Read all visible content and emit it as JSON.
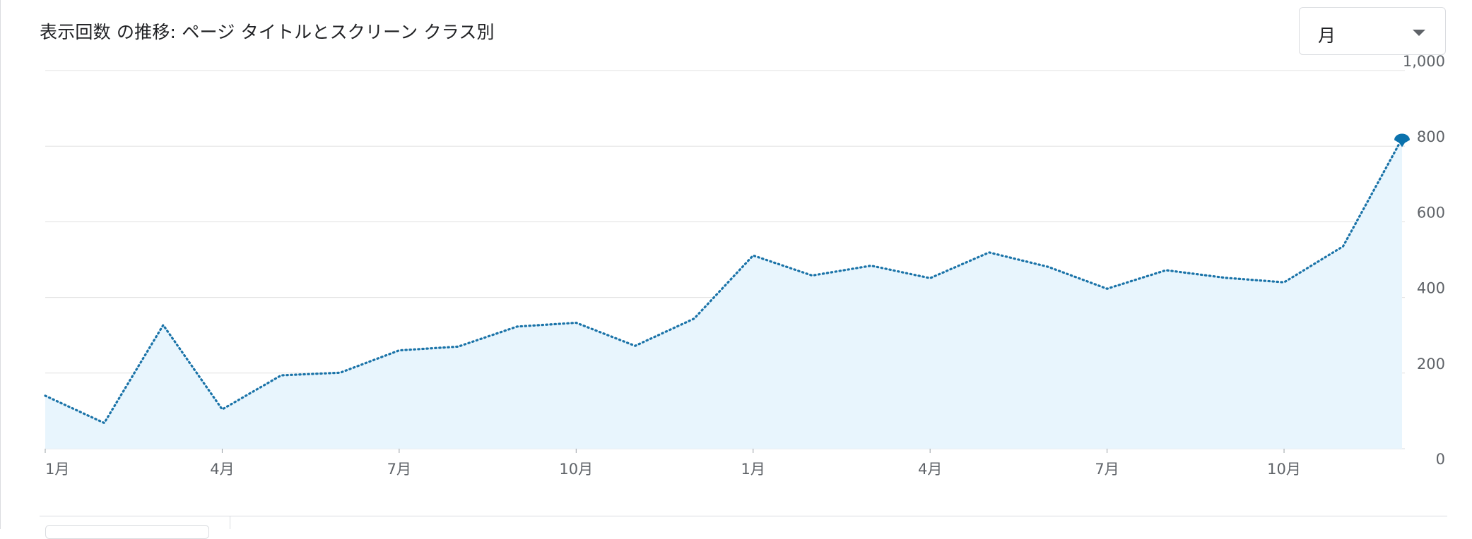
{
  "card": {
    "title": "表示回数 の推移: ページ タイトルとスクリーン クラス別"
  },
  "period_selector": {
    "selected": "月"
  },
  "colors": {
    "line": "#1a73a8",
    "area": "#e8f5fd",
    "grid": "#e0e0e0",
    "marker": "#0b72ad"
  },
  "icons": {
    "dropdown": "triangle-down-icon"
  },
  "chart_data": {
    "type": "line",
    "title": "",
    "xlabel": "",
    "ylabel": "",
    "ylim": [
      0,
      1000
    ],
    "yticks": [
      0,
      200,
      400,
      600,
      800,
      1000
    ],
    "ytick_labels": [
      "0",
      "200",
      "400",
      "600",
      "800",
      "1,000"
    ],
    "grid": true,
    "y_axis_position": "right",
    "line_style": "dotted",
    "fill": "area",
    "xtick_labels": [
      {
        "index": 0,
        "label": "1月"
      },
      {
        "index": 3,
        "label": "4月"
      },
      {
        "index": 6,
        "label": "7月"
      },
      {
        "index": 9,
        "label": "10月"
      },
      {
        "index": 12,
        "label": "1月"
      },
      {
        "index": 15,
        "label": "4月"
      },
      {
        "index": 18,
        "label": "7月"
      },
      {
        "index": 21,
        "label": "10月"
      }
    ],
    "series": [
      {
        "values": [
          140,
          68,
          327,
          104,
          194,
          201,
          260,
          270,
          323,
          333,
          272,
          344,
          511,
          458,
          484,
          451,
          519,
          481,
          423,
          472,
          452,
          440,
          535,
          820
        ],
        "highlight_last": true
      }
    ]
  }
}
